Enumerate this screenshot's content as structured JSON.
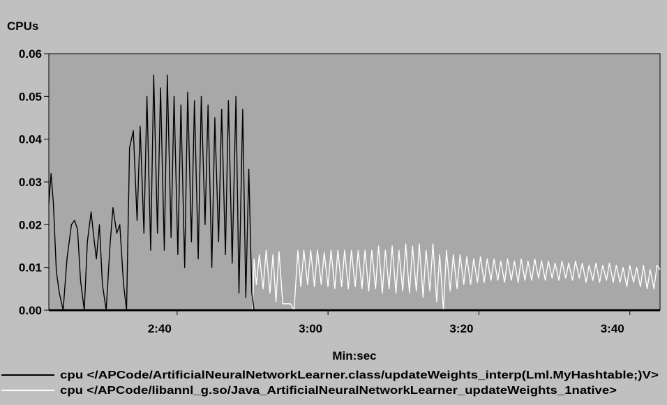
{
  "chart_data": {
    "type": "line",
    "title": "",
    "ylabel": "CPUs",
    "xlabel": "Min:sec",
    "ylim": [
      0,
      0.06
    ],
    "xlim": [
      143,
      224
    ],
    "yticks": [
      0,
      0.01,
      0.02,
      0.03,
      0.04,
      0.05,
      0.06
    ],
    "ytick_labels": [
      "0.00",
      "0.01",
      "0.02",
      "0.03",
      "0.04",
      "0.05",
      "0.06"
    ],
    "xticks": [
      160,
      180,
      200,
      220
    ],
    "xtick_labels": [
      "2:40",
      "3:00",
      "3:20",
      "3:40"
    ],
    "grid": false,
    "legend_position": "bottom",
    "colors": {
      "background": "#c0c0c0",
      "plot_area": "#a8a8a8",
      "series1": "#000000",
      "series2": "#ffffff"
    },
    "series": [
      {
        "name": "cpu </APCode/ArtificialNeuralNetworkLearner.class/updateWeights_interp(Lml.MyHashtable;)V>",
        "color": "#000000",
        "x": [
          143.0,
          143.3,
          143.6,
          144.0,
          144.4,
          144.9,
          145.4,
          146.0,
          146.4,
          146.8,
          147.2,
          147.7,
          148.1,
          148.6,
          148.9,
          149.3,
          149.7,
          150.1,
          150.6,
          151.1,
          151.5,
          152.0,
          152.4,
          152.9,
          153.3,
          153.7,
          154.2,
          154.7,
          155.1,
          155.6,
          156.0,
          156.5,
          156.9,
          157.4,
          157.8,
          158.3,
          158.7,
          159.2,
          159.6,
          160.1,
          160.5,
          161.0,
          161.4,
          161.9,
          162.3,
          162.8,
          163.2,
          163.7,
          164.1,
          164.6,
          165.0,
          165.5,
          165.9,
          166.4,
          166.8,
          167.3,
          167.8,
          168.2,
          168.7,
          169.1,
          169.5,
          169.9,
          170.2
        ],
        "y": [
          0.025,
          0.032,
          0.025,
          0.009,
          0.004,
          0.0,
          0.012,
          0.02,
          0.021,
          0.019,
          0.007,
          0.0,
          0.016,
          0.023,
          0.018,
          0.012,
          0.02,
          0.006,
          0.0,
          0.015,
          0.024,
          0.018,
          0.02,
          0.006,
          0.0,
          0.038,
          0.042,
          0.021,
          0.043,
          0.018,
          0.05,
          0.014,
          0.055,
          0.018,
          0.052,
          0.014,
          0.055,
          0.017,
          0.05,
          0.013,
          0.048,
          0.01,
          0.051,
          0.016,
          0.049,
          0.012,
          0.05,
          0.02,
          0.048,
          0.01,
          0.045,
          0.016,
          0.047,
          0.013,
          0.049,
          0.011,
          0.05,
          0.004,
          0.047,
          0.003,
          0.033,
          0.004,
          0.0
        ]
      },
      {
        "name": "cpu </APCode/libannl_g.so/Java_ArtificialNeuralNetworkLearner_updateWeights_1native>",
        "color": "#ffffff",
        "x": [
          143.0,
          170.0,
          170.2,
          170.5,
          170.9,
          171.4,
          171.8,
          172.3,
          172.7,
          173.1,
          173.5,
          174.0,
          174.5,
          175.0,
          175.5,
          176.0,
          176.4,
          176.8,
          177.3,
          177.7,
          178.2,
          178.6,
          179.1,
          179.5,
          180.0,
          180.4,
          180.9,
          181.3,
          181.8,
          182.2,
          182.7,
          183.1,
          183.6,
          184.0,
          184.5,
          184.9,
          185.4,
          185.8,
          186.3,
          186.7,
          187.2,
          187.6,
          188.1,
          188.5,
          189.0,
          189.4,
          189.9,
          190.3,
          190.8,
          191.2,
          191.7,
          192.1,
          192.6,
          193.0,
          193.5,
          193.9,
          194.4,
          194.8,
          195.3,
          195.7,
          196.2,
          196.6,
          197.1,
          197.5,
          198.0,
          198.4,
          198.9,
          199.3,
          199.8,
          200.2,
          200.7,
          201.1,
          201.6,
          202.0,
          202.5,
          202.9,
          203.4,
          203.8,
          204.3,
          204.7,
          205.2,
          205.6,
          206.1,
          206.5,
          207.0,
          207.4,
          207.9,
          208.3,
          208.8,
          209.2,
          209.7,
          210.1,
          210.6,
          211.0,
          211.5,
          211.9,
          212.4,
          212.8,
          213.3,
          213.7,
          214.2,
          214.6,
          215.1,
          215.5,
          216.0,
          216.4,
          216.9,
          217.3,
          217.8,
          218.2,
          218.7,
          219.1,
          219.6,
          220.0,
          220.5,
          220.9,
          221.4,
          221.8,
          222.3,
          222.7,
          223.2,
          223.6,
          224.0
        ],
        "y": [
          0.0,
          0.0,
          0.012,
          0.006,
          0.013,
          0.005,
          0.014,
          0.004,
          0.013,
          0.002,
          0.0137,
          0.0015,
          0.0015,
          0.0015,
          0.0,
          0.014,
          0.0055,
          0.014,
          0.006,
          0.014,
          0.0055,
          0.014,
          0.006,
          0.0135,
          0.0055,
          0.014,
          0.005,
          0.014,
          0.0055,
          0.014,
          0.005,
          0.014,
          0.0055,
          0.014,
          0.005,
          0.014,
          0.0045,
          0.014,
          0.005,
          0.015,
          0.004,
          0.014,
          0.005,
          0.015,
          0.004,
          0.014,
          0.0045,
          0.0155,
          0.004,
          0.015,
          0.0045,
          0.0155,
          0.003,
          0.014,
          0.0045,
          0.0155,
          0.002,
          0.013,
          0.0,
          0.014,
          0.0045,
          0.013,
          0.005,
          0.013,
          0.006,
          0.0125,
          0.006,
          0.012,
          0.0065,
          0.0125,
          0.0065,
          0.012,
          0.007,
          0.012,
          0.007,
          0.0115,
          0.0065,
          0.012,
          0.007,
          0.0115,
          0.0065,
          0.012,
          0.007,
          0.0115,
          0.007,
          0.012,
          0.0075,
          0.0115,
          0.007,
          0.0115,
          0.0075,
          0.011,
          0.007,
          0.0115,
          0.0075,
          0.011,
          0.007,
          0.0115,
          0.0075,
          0.011,
          0.0065,
          0.0105,
          0.007,
          0.011,
          0.0065,
          0.0105,
          0.007,
          0.011,
          0.0065,
          0.0105,
          0.0065,
          0.01,
          0.0055,
          0.0105,
          0.0065,
          0.01,
          0.0055,
          0.0105,
          0.005,
          0.0095,
          0.005,
          0.0105,
          0.0095
        ]
      }
    ]
  }
}
